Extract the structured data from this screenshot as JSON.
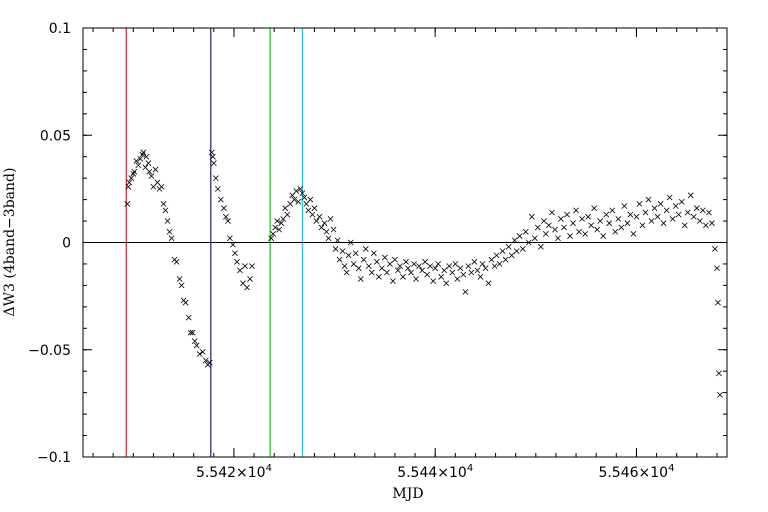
{
  "chart_data": {
    "type": "scatter",
    "xlabel": "MJD",
    "ylabel": "ΔW3 (4band−3band)",
    "xlim": [
      55405,
      55469
    ],
    "ylim": [
      -0.1,
      0.1
    ],
    "x_ticks": [
      {
        "value": 55420,
        "label_mantissa": "5.542",
        "label_exp": "4"
      },
      {
        "value": 55440,
        "label_mantissa": "5.544",
        "label_exp": "4"
      },
      {
        "value": 55460,
        "label_mantissa": "5.546",
        "label_exp": "4"
      }
    ],
    "y_ticks": [
      {
        "value": 0.1,
        "label": "0.1"
      },
      {
        "value": 0.05,
        "label": "0.05"
      },
      {
        "value": 0,
        "label": "0"
      },
      {
        "value": -0.05,
        "label": "−0.05"
      },
      {
        "value": -0.1,
        "label": "−0.1"
      }
    ],
    "zero_line": 0,
    "vertical_lines": [
      {
        "x": 55409.3,
        "color": "#d0202f"
      },
      {
        "x": 55417.7,
        "color": "#1c1c7a"
      },
      {
        "x": 55423.6,
        "color": "#22c022"
      },
      {
        "x": 55426.8,
        "color": "#22c8e0"
      }
    ],
    "marker": "x",
    "grid": false,
    "series": [
      {
        "points": [
          [
            55409.4,
            0.018
          ],
          [
            55409.5,
            0.026
          ],
          [
            55409.6,
            0.028
          ],
          [
            55409.8,
            0.03
          ],
          [
            55410.0,
            0.032
          ],
          [
            55410.1,
            0.033
          ],
          [
            55410.3,
            0.038
          ],
          [
            55410.5,
            0.036
          ],
          [
            55410.7,
            0.039
          ],
          [
            55410.9,
            0.041
          ],
          [
            55411.0,
            0.042
          ],
          [
            55411.2,
            0.035
          ],
          [
            55411.3,
            0.04
          ],
          [
            55411.5,
            0.037
          ],
          [
            55411.6,
            0.033
          ],
          [
            55411.8,
            0.031
          ],
          [
            55412.0,
            0.026
          ],
          [
            55412.2,
            0.034
          ],
          [
            55412.4,
            0.028
          ],
          [
            55412.6,
            0.025
          ],
          [
            55412.8,
            0.026
          ],
          [
            55413.0,
            0.018
          ],
          [
            55413.2,
            0.015
          ],
          [
            55413.4,
            0.01
          ],
          [
            55413.6,
            0.005
          ],
          [
            55413.8,
            0.002
          ],
          [
            55414.1,
            -0.008
          ],
          [
            55414.3,
            -0.009
          ],
          [
            55414.6,
            -0.017
          ],
          [
            55414.8,
            -0.02
          ],
          [
            55415.0,
            -0.027
          ],
          [
            55415.2,
            -0.028
          ],
          [
            55415.5,
            -0.035
          ],
          [
            55415.7,
            -0.042
          ],
          [
            55415.9,
            -0.042
          ],
          [
            55416.1,
            -0.046
          ],
          [
            55416.3,
            -0.048
          ],
          [
            55416.6,
            -0.052
          ],
          [
            55416.9,
            -0.051
          ],
          [
            55417.2,
            -0.055
          ],
          [
            55417.4,
            -0.057
          ],
          [
            55417.6,
            -0.056
          ],
          [
            55417.8,
            0.042
          ],
          [
            55417.9,
            0.04
          ],
          [
            55418.0,
            0.037
          ],
          [
            55418.2,
            0.03
          ],
          [
            55418.4,
            0.025
          ],
          [
            55418.7,
            0.02
          ],
          [
            55419.0,
            0.016
          ],
          [
            55419.2,
            0.012
          ],
          [
            55419.4,
            0.01
          ],
          [
            55419.6,
            0.002
          ],
          [
            55419.9,
            -0.001
          ],
          [
            55420.1,
            -0.005
          ],
          [
            55420.3,
            -0.009
          ],
          [
            55420.6,
            -0.013
          ],
          [
            55420.9,
            -0.019
          ],
          [
            55421.1,
            -0.011
          ],
          [
            55421.3,
            -0.021
          ],
          [
            55421.6,
            -0.017
          ],
          [
            55421.8,
            -0.011
          ],
          [
            55423.7,
            0.002
          ],
          [
            55423.9,
            0.004
          ],
          [
            55424.1,
            0.007
          ],
          [
            55424.3,
            0.01
          ],
          [
            55424.5,
            0.006
          ],
          [
            55424.7,
            0.009
          ],
          [
            55424.9,
            0.011
          ],
          [
            55425.1,
            0.016
          ],
          [
            55425.3,
            0.013
          ],
          [
            55425.6,
            0.018
          ],
          [
            55425.8,
            0.022
          ],
          [
            55426.0,
            0.02
          ],
          [
            55426.2,
            0.024
          ],
          [
            55426.4,
            0.019
          ],
          [
            55426.6,
            0.025
          ],
          [
            55426.8,
            0.023
          ],
          [
            55427.0,
            0.021
          ],
          [
            55427.2,
            0.018
          ],
          [
            55427.4,
            0.015
          ],
          [
            55427.6,
            0.02
          ],
          [
            55427.8,
            0.013
          ],
          [
            55428.0,
            0.016
          ],
          [
            55428.2,
            0.01
          ],
          [
            55428.5,
            0.012
          ],
          [
            55428.7,
            0.007
          ],
          [
            55429.0,
            0.009
          ],
          [
            55429.2,
            0.005
          ],
          [
            55429.4,
            0.002
          ],
          [
            55429.6,
            0.011
          ],
          [
            55429.9,
            0.006
          ],
          [
            55430.1,
            -0.003
          ],
          [
            55430.3,
            0.001
          ],
          [
            55430.5,
            -0.008
          ],
          [
            55430.8,
            -0.004
          ],
          [
            55431.0,
            -0.011
          ],
          [
            55431.2,
            -0.014
          ],
          [
            55431.4,
            -0.006
          ],
          [
            55431.6,
            0.0
          ],
          [
            55431.9,
            -0.01
          ],
          [
            55432.1,
            -0.005
          ],
          [
            55432.4,
            -0.012
          ],
          [
            55432.6,
            -0.017
          ],
          [
            55432.9,
            -0.008
          ],
          [
            55433.1,
            -0.003
          ],
          [
            55433.4,
            -0.011
          ],
          [
            55433.7,
            -0.014
          ],
          [
            55433.9,
            -0.005
          ],
          [
            55434.2,
            -0.009
          ],
          [
            55434.4,
            -0.016
          ],
          [
            55434.7,
            -0.012
          ],
          [
            55435.0,
            -0.007
          ],
          [
            55435.2,
            -0.014
          ],
          [
            55435.5,
            -0.01
          ],
          [
            55435.8,
            -0.018
          ],
          [
            55436.0,
            -0.008
          ],
          [
            55436.3,
            -0.013
          ],
          [
            55436.5,
            -0.011
          ],
          [
            55436.8,
            -0.016
          ],
          [
            55437.1,
            -0.009
          ],
          [
            55437.3,
            -0.012
          ],
          [
            55437.6,
            -0.014
          ],
          [
            55437.9,
            -0.01
          ],
          [
            55438.1,
            -0.017
          ],
          [
            55438.4,
            -0.011
          ],
          [
            55438.7,
            -0.013
          ],
          [
            55439.0,
            -0.009
          ],
          [
            55439.2,
            -0.015
          ],
          [
            55439.5,
            -0.011
          ],
          [
            55439.8,
            -0.018
          ],
          [
            55440.0,
            -0.012
          ],
          [
            55440.3,
            -0.01
          ],
          [
            55440.6,
            -0.016
          ],
          [
            55440.9,
            -0.013
          ],
          [
            55441.1,
            -0.019
          ],
          [
            55441.4,
            -0.011
          ],
          [
            55441.7,
            -0.014
          ],
          [
            55442.0,
            -0.01
          ],
          [
            55442.2,
            -0.017
          ],
          [
            55442.5,
            -0.012
          ],
          [
            55442.8,
            -0.015
          ],
          [
            55443.0,
            -0.023
          ],
          [
            55443.3,
            -0.011
          ],
          [
            55443.6,
            -0.014
          ],
          [
            55443.9,
            -0.009
          ],
          [
            55444.2,
            -0.013
          ],
          [
            55444.5,
            -0.016
          ],
          [
            55444.7,
            -0.01
          ],
          [
            55445.0,
            -0.012
          ],
          [
            55445.3,
            -0.019
          ],
          [
            55445.6,
            -0.008
          ],
          [
            55445.9,
            -0.011
          ],
          [
            55446.1,
            -0.006
          ],
          [
            55446.4,
            -0.01
          ],
          [
            55446.7,
            -0.004
          ],
          [
            55447.0,
            -0.008
          ],
          [
            55447.3,
            -0.002
          ],
          [
            55447.6,
            -0.006
          ],
          [
            55447.9,
            0.001
          ],
          [
            55448.1,
            -0.004
          ],
          [
            55448.4,
            0.003
          ],
          [
            55448.7,
            -0.003
          ],
          [
            55449.0,
            0.005
          ],
          [
            55449.3,
            0.0
          ],
          [
            55449.6,
            0.012
          ],
          [
            55449.9,
            0.002
          ],
          [
            55450.2,
            0.007
          ],
          [
            55450.5,
            -0.002
          ],
          [
            55450.8,
            0.01
          ],
          [
            55451.0,
            0.004
          ],
          [
            55451.3,
            0.008
          ],
          [
            55451.6,
            0.014
          ],
          [
            55451.9,
            0.006
          ],
          [
            55452.2,
            0.002
          ],
          [
            55452.5,
            0.011
          ],
          [
            55452.8,
            0.007
          ],
          [
            55453.1,
            0.013
          ],
          [
            55453.4,
            0.003
          ],
          [
            55453.7,
            0.009
          ],
          [
            55454.0,
            0.015
          ],
          [
            55454.3,
            0.005
          ],
          [
            55454.6,
            0.011
          ],
          [
            55454.9,
            0.004
          ],
          [
            55455.2,
            0.012
          ],
          [
            55455.5,
            0.008
          ],
          [
            55455.8,
            0.016
          ],
          [
            55456.1,
            0.006
          ],
          [
            55456.4,
            0.01
          ],
          [
            55456.7,
            0.003
          ],
          [
            55457.0,
            0.013
          ],
          [
            55457.3,
            0.009
          ],
          [
            55457.6,
            0.015
          ],
          [
            55457.9,
            0.005
          ],
          [
            55458.2,
            0.011
          ],
          [
            55458.5,
            0.007
          ],
          [
            55458.8,
            0.017
          ],
          [
            55459.1,
            0.009
          ],
          [
            55459.4,
            0.013
          ],
          [
            55459.7,
            0.004
          ],
          [
            55460.0,
            0.012
          ],
          [
            55460.3,
            0.018
          ],
          [
            55460.6,
            0.008
          ],
          [
            55460.9,
            0.014
          ],
          [
            55461.2,
            0.02
          ],
          [
            55461.5,
            0.01
          ],
          [
            55461.8,
            0.016
          ],
          [
            55462.1,
            0.012
          ],
          [
            55462.4,
            0.018
          ],
          [
            55462.7,
            0.009
          ],
          [
            55463.0,
            0.015
          ],
          [
            55463.3,
            0.021
          ],
          [
            55463.6,
            0.011
          ],
          [
            55463.9,
            0.017
          ],
          [
            55464.2,
            0.013
          ],
          [
            55464.5,
            0.019
          ],
          [
            55464.8,
            0.008
          ],
          [
            55465.1,
            0.014
          ],
          [
            55465.4,
            0.022
          ],
          [
            55465.7,
            0.012
          ],
          [
            55466.0,
            0.016
          ],
          [
            55466.3,
            0.01
          ],
          [
            55466.6,
            0.015
          ],
          [
            55466.9,
            0.008
          ],
          [
            55467.2,
            0.014
          ],
          [
            55467.5,
            0.009
          ],
          [
            55467.8,
            -0.003
          ],
          [
            55468.0,
            -0.012
          ],
          [
            55468.1,
            -0.028
          ],
          [
            55468.2,
            -0.061
          ],
          [
            55468.3,
            -0.071
          ]
        ]
      }
    ]
  }
}
